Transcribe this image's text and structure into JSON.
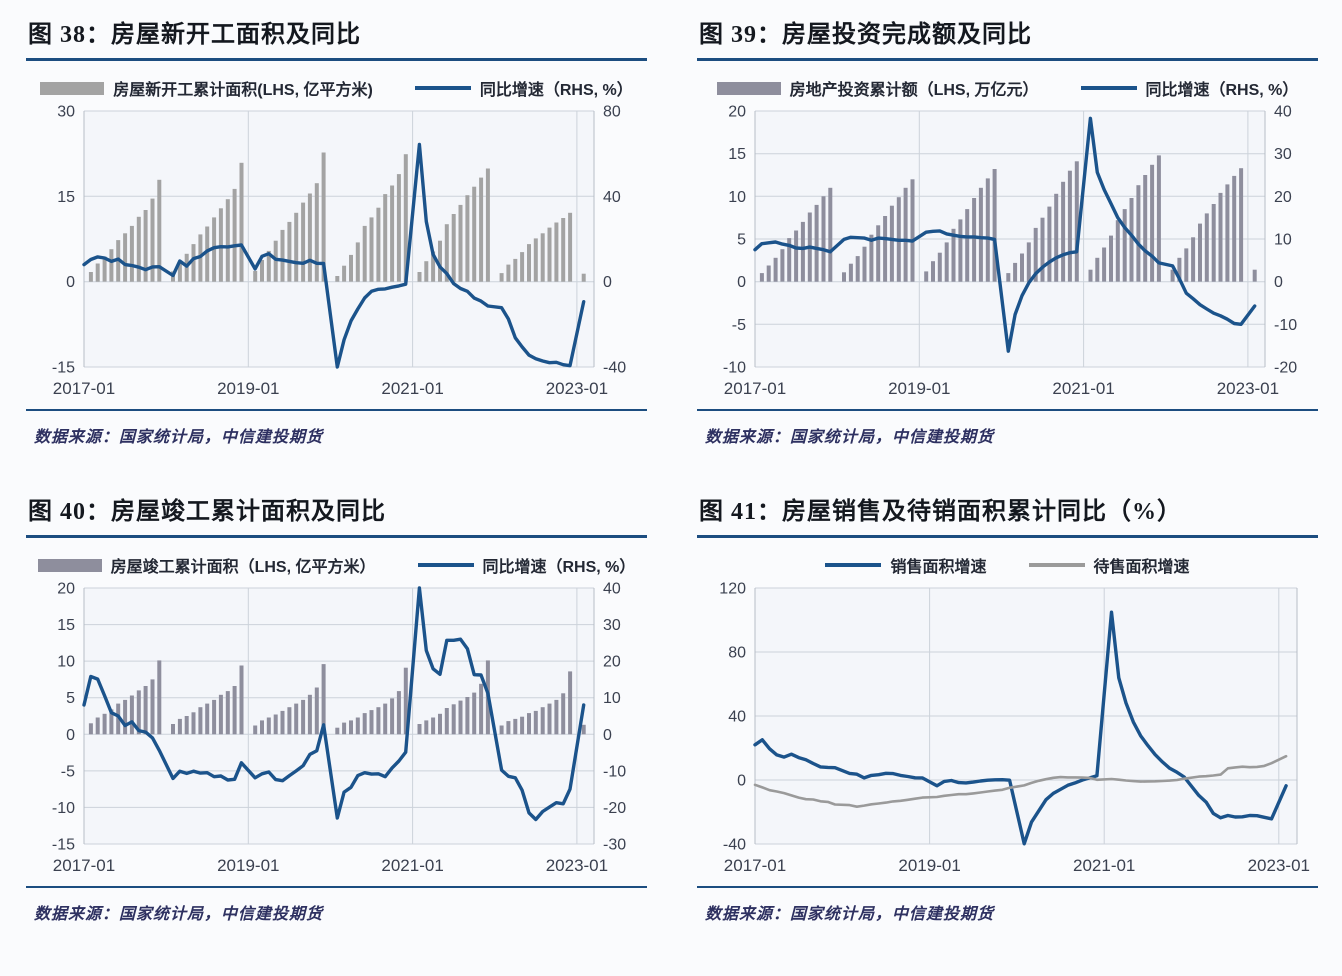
{
  "style": {
    "page_bg": "#fafbfd",
    "plot_bg": "#f4f6fa",
    "grid_color": "#ccd2da",
    "border_color": "#b7bdc6",
    "rule_color": "#1c4d80",
    "tick_color": "#3b4150",
    "title_color": "#14181f",
    "legend_color": "#232834",
    "source_color": "#2e3161",
    "navy": "#1b538b",
    "bar_gray": "#a3a3a3",
    "bar_slate": "#8e8e9d",
    "line_gray": "#9a9a9a"
  },
  "chart_data": [
    {
      "figure": "图 38",
      "title": "图 38：房屋新开工面积及同比",
      "source": "数据来源：国家统计局，中信建投期货",
      "type": "combo",
      "legend": [
        {
          "label": "房屋新开工累计面积(LHS, 亿平方米)",
          "marker": "bar",
          "color": "#a3a3a3"
        },
        {
          "label": "同比增速（RHS, %）",
          "marker": "line",
          "color": "#1b538b"
        }
      ],
      "left_axis": {
        "unit": "亿平方米",
        "min": -15,
        "max": 30,
        "ticks": [
          30,
          15,
          0,
          -15
        ]
      },
      "right_axis": {
        "unit": "%",
        "min": -40,
        "max": 80,
        "ticks": [
          80,
          40,
          0,
          -40
        ]
      },
      "x_axis": {
        "ticks": [
          {
            "month": 0,
            "label": "2017-01"
          },
          {
            "month": 24,
            "label": "2019-01"
          },
          {
            "month": 48,
            "label": "2021-01"
          },
          {
            "month": 72,
            "label": "2023-01"
          }
        ]
      },
      "bars": {
        "name": "房屋新开工累计面积",
        "color": "#a3a3a3",
        "by_year": {
          "2017": [
            1.7,
            3.2,
            4.4,
            5.7,
            7.3,
            8.5,
            9.8,
            11.4,
            12.6,
            14.6,
            17.9
          ],
          "2018": [
            1.8,
            3.5,
            4.9,
            6.6,
            8.3,
            9.7,
            11.3,
            12.9,
            14.5,
            16.3,
            20.9
          ],
          "2019": [
            1.9,
            3.8,
            5.4,
            7.2,
            9.1,
            10.5,
            12.1,
            13.9,
            15.5,
            17.3,
            22.7
          ],
          "2020": [
            1.0,
            2.8,
            4.7,
            6.9,
            9.8,
            11.3,
            13.0,
            15.4,
            16.9,
            18.9,
            22.4
          ],
          "2021": [
            1.7,
            3.6,
            5.3,
            7.2,
            10.1,
            11.9,
            13.5,
            15.2,
            16.7,
            18.3,
            19.9
          ],
          "2022": [
            1.5,
            3.0,
            4.0,
            5.2,
            6.6,
            7.6,
            8.5,
            9.5,
            10.4,
            11.2,
            12.1
          ],
          "2023": [
            1.4
          ]
        }
      },
      "lines": [
        {
          "name": "同比增速",
          "axis": "right",
          "color": "#1b538b",
          "width": 3.4,
          "by_year": {
            "2017": [
              8.0,
              10.4,
              11.6,
              11.1,
              9.5,
              10.6,
              8.0,
              7.6,
              6.8,
              5.6,
              6.9,
              7.0
            ],
            "2018": [
              2.9,
              9.7,
              7.3,
              10.8,
              11.8,
              14.4,
              15.9,
              16.4,
              16.3,
              16.8,
              17.2
            ],
            "2019": [
              6.0,
              11.9,
              13.1,
              10.5,
              10.1,
              9.5,
              8.9,
              8.6,
              10.0,
              8.6,
              8.5
            ],
            "2020": [
              -44.9,
              -27.2,
              -18.4,
              -12.8,
              -7.6,
              -4.5,
              -3.6,
              -3.4,
              -2.6,
              -2.0,
              -1.2
            ],
            "2021": [
              64.3,
              28.2,
              12.8,
              6.9,
              3.8,
              -0.9,
              -3.2,
              -4.5,
              -7.7,
              -9.1,
              -11.4
            ],
            "2022": [
              -12.2,
              -17.5,
              -26.3,
              -30.6,
              -34.4,
              -36.1,
              -37.2,
              -38.0,
              -37.8,
              -38.9,
              -39.4
            ],
            "2023": [
              -9.4
            ]
          }
        }
      ]
    },
    {
      "figure": "图 39",
      "title": "图 39：房屋投资完成额及同比",
      "source": "数据来源：国家统计局，中信建投期货",
      "type": "combo",
      "legend": [
        {
          "label": "房地产投资累计额（LHS, 万亿元）",
          "marker": "bar",
          "color": "#8e8e9d"
        },
        {
          "label": "同比增速（RHS, %）",
          "marker": "line",
          "color": "#1b538b"
        }
      ],
      "left_axis": {
        "unit": "万亿元",
        "min": -10,
        "max": 20,
        "ticks": [
          20,
          15,
          10,
          5,
          0,
          -5,
          -10
        ]
      },
      "right_axis": {
        "unit": "%",
        "min": -20,
        "max": 40,
        "ticks": [
          40,
          30,
          20,
          10,
          0,
          -10,
          -20
        ]
      },
      "x_axis": {
        "ticks": [
          {
            "month": 0,
            "label": "2017-01"
          },
          {
            "month": 24,
            "label": "2019-01"
          },
          {
            "month": 48,
            "label": "2021-01"
          },
          {
            "month": 72,
            "label": "2023-01"
          }
        ]
      },
      "bars": {
        "name": "房地产投资累计额",
        "color": "#8e8e9d",
        "by_year": {
          "2017": [
            1.0,
            1.9,
            2.8,
            3.8,
            5.1,
            6.0,
            7.0,
            8.1,
            9.0,
            10.0,
            11.0
          ],
          "2018": [
            1.1,
            2.1,
            3.0,
            4.1,
            5.5,
            6.6,
            7.7,
            8.9,
            9.9,
            11.0,
            12.0
          ],
          "2019": [
            1.2,
            2.4,
            3.4,
            4.6,
            6.2,
            7.3,
            8.5,
            9.8,
            11.0,
            12.1,
            13.2
          ],
          "2020": [
            1.0,
            2.2,
            3.3,
            4.6,
            6.3,
            7.5,
            8.8,
            10.3,
            11.7,
            13.0,
            14.1
          ],
          "2021": [
            1.4,
            2.8,
            4.0,
            5.4,
            7.2,
            8.5,
            9.8,
            11.3,
            12.5,
            13.7,
            14.8
          ],
          "2022": [
            1.4,
            2.8,
            3.9,
            5.2,
            6.8,
            8.0,
            9.1,
            10.4,
            11.4,
            12.4,
            13.3
          ],
          "2023": [
            1.4
          ]
        }
      },
      "lines": [
        {
          "name": "同比增速",
          "axis": "right",
          "color": "#1b538b",
          "width": 3.4,
          "by_year": {
            "2017": [
              7.5,
              8.9,
              9.1,
              9.3,
              8.8,
              8.5,
              7.9,
              7.8,
              8.1,
              7.8,
              7.5,
              7.0
            ],
            "2018": [
              9.9,
              10.4,
              10.3,
              10.2,
              9.7,
              10.2,
              10.1,
              9.9,
              9.7,
              9.7,
              9.5
            ],
            "2019": [
              11.6,
              11.8,
              11.9,
              11.2,
              10.9,
              10.6,
              10.5,
              10.5,
              10.3,
              10.2,
              9.9
            ],
            "2020": [
              -16.3,
              -7.7,
              -3.3,
              -0.3,
              1.9,
              3.4,
              4.6,
              5.6,
              6.3,
              6.8,
              7.0
            ],
            "2021": [
              38.3,
              25.6,
              21.6,
              18.3,
              15.0,
              12.7,
              10.9,
              8.8,
              7.2,
              6.0,
              4.4
            ],
            "2022": [
              3.7,
              0.7,
              -2.7,
              -4.0,
              -5.4,
              -6.4,
              -7.4,
              -8.0,
              -8.8,
              -9.8,
              -10.0
            ],
            "2023": [
              -5.7
            ]
          }
        }
      ]
    },
    {
      "figure": "图 40",
      "title": "图 40：房屋竣工累计面积及同比",
      "source": "数据来源：国家统计局，中信建投期货",
      "type": "combo",
      "legend": [
        {
          "label": "房屋竣工累计面积（LHS, 亿平方米）",
          "marker": "bar",
          "color": "#8e8e9d"
        },
        {
          "label": "同比增速（RHS, %）",
          "marker": "line",
          "color": "#1b538b"
        }
      ],
      "left_axis": {
        "unit": "亿平方米",
        "min": -15,
        "max": 20,
        "ticks": [
          20,
          15,
          10,
          5,
          0,
          -5,
          -10,
          -15
        ]
      },
      "right_axis": {
        "unit": "%",
        "min": -30,
        "max": 40,
        "ticks": [
          40,
          30,
          20,
          10,
          0,
          -10,
          -20,
          -30
        ]
      },
      "x_axis": {
        "ticks": [
          {
            "month": 0,
            "label": "2017-01"
          },
          {
            "month": 24,
            "label": "2019-01"
          },
          {
            "month": 48,
            "label": "2021-01"
          },
          {
            "month": 72,
            "label": "2023-01"
          }
        ]
      },
      "bars": {
        "name": "房屋竣工累计面积",
        "color": "#8e8e9d",
        "by_year": {
          "2017": [
            1.5,
            2.3,
            2.8,
            3.4,
            4.2,
            4.7,
            5.3,
            6.0,
            6.6,
            7.5,
            10.1
          ],
          "2018": [
            1.4,
            2.1,
            2.5,
            3.0,
            3.7,
            4.2,
            4.7,
            5.4,
            5.9,
            6.6,
            9.4
          ],
          "2019": [
            1.2,
            1.9,
            2.3,
            2.7,
            3.2,
            3.7,
            4.2,
            4.7,
            5.4,
            6.4,
            9.6
          ],
          "2020": [
            0.9,
            1.6,
            1.9,
            2.3,
            2.9,
            3.3,
            3.7,
            4.2,
            4.9,
            5.9,
            9.1
          ],
          "2021": [
            1.4,
            1.9,
            2.3,
            2.8,
            3.6,
            4.1,
            4.6,
            5.1,
            5.7,
            6.9,
            10.1
          ],
          "2022": [
            1.2,
            1.8,
            2.1,
            2.4,
            2.9,
            3.2,
            3.7,
            4.2,
            4.7,
            5.6,
            8.6
          ],
          "2023": [
            1.3
          ]
        }
      },
      "lines": [
        {
          "name": "同比增速",
          "axis": "right",
          "color": "#1b538b",
          "width": 3.4,
          "by_year": {
            "2017": [
              8.0,
              15.8,
              15.1,
              10.6,
              5.9,
              5.0,
              2.4,
              3.4,
              1.0,
              0.6,
              -1.0,
              -4.4
            ],
            "2018": [
              -12.1,
              -10.1,
              -10.7,
              -10.1,
              -10.6,
              -10.5,
              -11.6,
              -11.4,
              -12.5,
              -12.3,
              -7.8
            ],
            "2019": [
              -11.9,
              -10.8,
              -10.3,
              -12.4,
              -12.7,
              -11.3,
              -10.0,
              -8.6,
              -5.5,
              -4.5,
              2.6
            ],
            "2020": [
              -22.9,
              -15.8,
              -14.5,
              -11.3,
              -10.5,
              -10.9,
              -10.8,
              -11.6,
              -9.2,
              -7.3,
              -4.9
            ],
            "2021": [
              40.4,
              22.9,
              17.9,
              16.4,
              25.7,
              25.7,
              26.0,
              23.4,
              16.3,
              16.2,
              11.2
            ],
            "2022": [
              -9.8,
              -11.5,
              -11.9,
              -15.3,
              -21.5,
              -23.3,
              -21.1,
              -19.9,
              -18.7,
              -19.0,
              -15.0
            ],
            "2023": [
              8.0
            ]
          }
        }
      ]
    },
    {
      "figure": "图 41",
      "title": "图 41：房屋销售及待销面积累计同比（%）",
      "source": "数据来源：国家统计局，中信建投期货",
      "type": "line",
      "legend": [
        {
          "label": "销售面积增速",
          "marker": "line",
          "color": "#1b538b"
        },
        {
          "label": "待售面积增速",
          "marker": "line",
          "color": "#9a9a9a"
        }
      ],
      "left_axis": {
        "unit": "%",
        "min": -40,
        "max": 120,
        "ticks": [
          120,
          80,
          40,
          0,
          -40
        ]
      },
      "right_axis": null,
      "x_axis": {
        "ticks": [
          {
            "month": 0,
            "label": "2017-01"
          },
          {
            "month": 24,
            "label": "2019-01"
          },
          {
            "month": 48,
            "label": "2021-01"
          },
          {
            "month": 72,
            "label": "2023-01"
          }
        ]
      },
      "bars": null,
      "lines": [
        {
          "name": "销售面积增速",
          "axis": "left",
          "color": "#1b538b",
          "width": 3.4,
          "by_year": {
            "2017": [
              22.0,
              25.1,
              19.5,
              15.7,
              14.3,
              16.1,
              14.0,
              12.7,
              10.3,
              8.2,
              7.9,
              7.7
            ],
            "2018": [
              4.1,
              3.6,
              1.3,
              2.9,
              3.3,
              4.2,
              4.0,
              2.9,
              2.2,
              1.4,
              1.3
            ],
            "2019": [
              -3.6,
              -0.9,
              -0.3,
              -1.6,
              -1.8,
              -1.3,
              -0.6,
              -0.1,
              0.1,
              0.2,
              -0.1
            ],
            "2020": [
              -39.9,
              -26.3,
              -19.3,
              -12.3,
              -8.4,
              -5.8,
              -3.3,
              -1.8,
              0.0,
              1.3,
              2.6
            ],
            "2021": [
              104.9,
              63.8,
              48.1,
              36.3,
              27.7,
              21.5,
              15.9,
              11.3,
              7.3,
              4.8,
              1.9
            ],
            "2022": [
              -9.6,
              -13.8,
              -20.9,
              -23.6,
              -22.2,
              -23.1,
              -23.0,
              -22.2,
              -22.3,
              -23.3,
              -24.3
            ],
            "2023": [
              -3.6
            ]
          }
        },
        {
          "name": "待售面积增速",
          "axis": "left",
          "color": "#9a9a9a",
          "width": 2.6,
          "by_year": {
            "2017": [
              -3.0,
              -4.6,
              -6.4,
              -7.2,
              -8.2,
              -9.6,
              -11.0,
              -12.0,
              -12.2,
              -13.3,
              -13.7,
              -15.3
            ],
            "2018": [
              -15.7,
              -16.7,
              -16.0,
              -15.2,
              -14.7,
              -14.1,
              -13.4,
              -13.0,
              -12.4,
              -11.7,
              -11.0
            ],
            "2019": [
              -10.6,
              -9.9,
              -9.4,
              -8.9,
              -8.9,
              -8.4,
              -7.8,
              -7.2,
              -6.6,
              -6.1,
              -4.9
            ],
            "2020": [
              -3.4,
              -1.8,
              -0.5,
              0.5,
              1.4,
              1.8,
              1.6,
              1.6,
              1.5,
              1.3,
              0.1
            ],
            "2021": [
              0.6,
              0.2,
              -0.3,
              -0.7,
              -1.0,
              -0.9,
              -0.8,
              -0.6,
              -0.4,
              0.0,
              0.8
            ],
            "2022": [
              2.1,
              2.4,
              2.8,
              3.4,
              7.3,
              7.9,
              8.3,
              8.0,
              8.2,
              8.8,
              10.5
            ],
            "2023": [
              14.9
            ]
          }
        }
      ]
    }
  ]
}
